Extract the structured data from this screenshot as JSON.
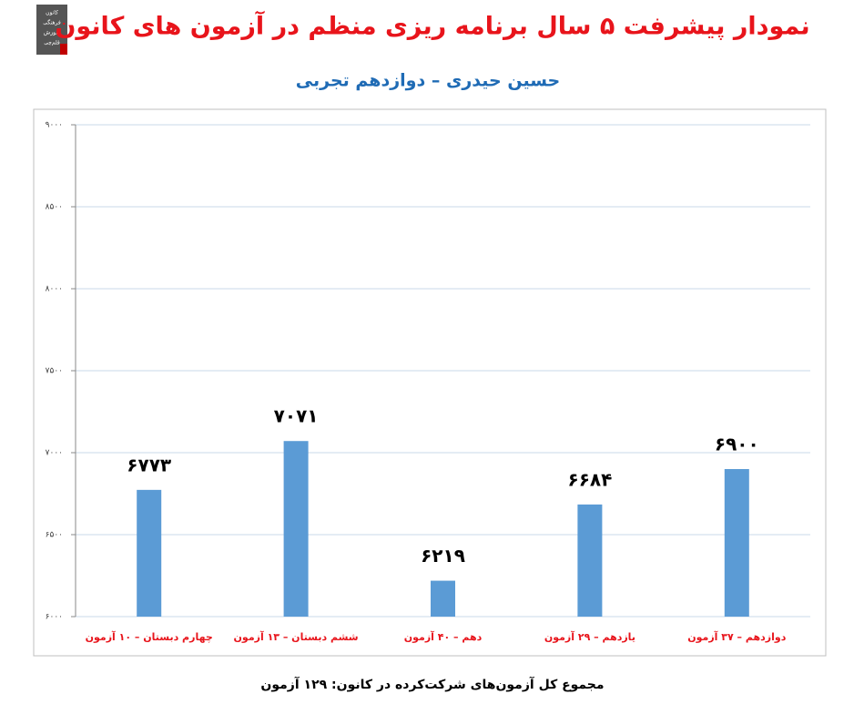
{
  "logo": {
    "lines": [
      "کانون",
      "فرهنگی",
      "آموزش",
      "قلم‌چی"
    ]
  },
  "chart_data": {
    "type": "bar",
    "title": "نمودار پیشرفت ۵ سال برنامه ریزی منظم در آزمون های کانون",
    "subtitle": "حسین حیدری – دوازدهم تجربی",
    "footer": "مجموع کل آزمون‌های شرکت‌کرده در کانون: ۱۲۹ آزمون",
    "categories": [
      "چهارم دبستان – ۱۰ آزمون",
      "ششم دبستان – ۱۳ آزمون",
      "دهم – ۴۰ آزمون",
      "یازدهم – ۲۹ آزمون",
      "دوازدهم – ۳۷ آزمون"
    ],
    "values": [
      6773,
      7071,
      6219,
      6684,
      6900
    ],
    "value_labels": [
      "۶۷۷۳",
      "۷۰۷۱",
      "۶۲۱۹",
      "۶۶۸۴",
      "۶۹۰۰"
    ],
    "color": "#5b9bd5",
    "ylim": [
      6000,
      9000
    ],
    "yticks": [
      {
        "value": 6000,
        "label": "۶۰۰۰"
      },
      {
        "value": 6500,
        "label": "۶۵۰۰"
      },
      {
        "value": 7000,
        "label": "۷۰۰۰"
      },
      {
        "value": 7500,
        "label": "۷۵۰۰"
      },
      {
        "value": 8000,
        "label": "۸۰۰۰"
      },
      {
        "value": 8500,
        "label": "۸۵۰۰"
      },
      {
        "value": 9000,
        "label": "۹۰۰۰"
      }
    ],
    "grid": true
  }
}
